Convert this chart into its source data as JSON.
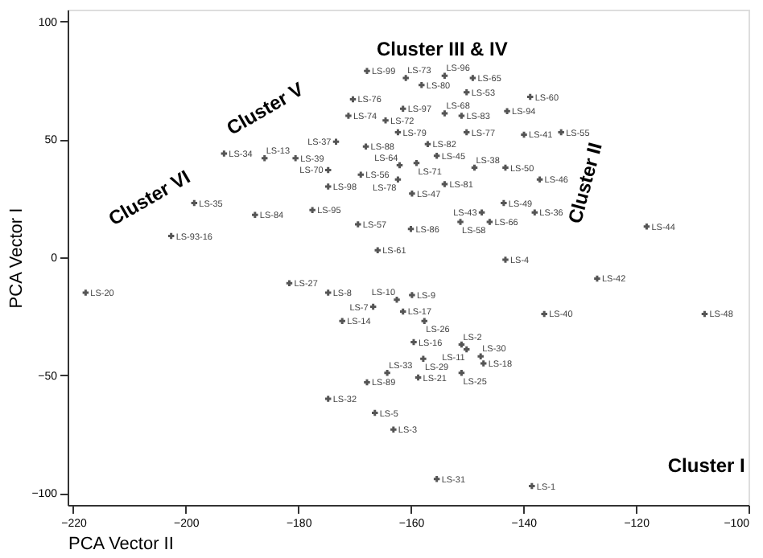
{
  "chart_data": {
    "type": "scatter",
    "xlabel": "PCA Vector II",
    "ylabel": "PCA Vector I",
    "xlim": [
      -221,
      -100
    ],
    "xticks": [
      -220,
      -200,
      -180,
      -160,
      -140,
      -120,
      -100
    ],
    "ylim": [
      -105,
      105
    ],
    "yticks": [
      -100,
      -50,
      0,
      50,
      100
    ],
    "grid": false,
    "marker": "cross",
    "series": [
      {
        "color": "#555555",
        "x": [
          -167.8,
          -170.3,
          -171.1,
          -193.2,
          -186,
          -180.5,
          -173.3,
          -168,
          -174.7,
          -168.9,
          -174.7,
          -187.7,
          -177.5,
          -169.4,
          -165.9,
          -198.5,
          -202.6,
          -217.8,
          -160.9,
          -154,
          -149,
          -158.1,
          -150.1,
          -161.4,
          -164.5,
          -154,
          -151,
          -162.3,
          -150.1,
          -157,
          -155.4,
          -159,
          -162,
          -162.3,
          -159.8,
          -154,
          -148.7,
          -143.2,
          -142.9,
          -138.8,
          -139.9,
          -133.3,
          -137.1,
          -143.5,
          -147.4,
          -138,
          -151.2,
          -146,
          -160,
          -143.2,
          -118.1,
          -126.9,
          -181.6,
          -174.7,
          -166.7,
          -172.2,
          -167.8,
          -164.2,
          -174.7,
          -166.4,
          -163.1,
          -162.5,
          -159.8,
          -161.4,
          -157.6,
          -159.5,
          -151,
          -150.1,
          -157.8,
          -147.6,
          -147.1,
          -151,
          -158.7,
          -155.4,
          -138.5,
          -136.3,
          -107.8
        ],
        "values": [
          79,
          67,
          60,
          44,
          42,
          42,
          49,
          47,
          37,
          35,
          30,
          18,
          20,
          14,
          3,
          23,
          9,
          -15,
          76,
          77,
          76,
          73,
          70,
          63,
          58,
          61,
          60,
          53,
          53,
          48,
          43,
          40,
          39,
          33,
          27,
          31,
          38,
          38,
          62,
          68,
          52,
          53,
          33,
          23,
          19,
          19,
          15,
          15,
          12,
          -1,
          13,
          -9,
          -11,
          -15,
          -21,
          -27,
          -53,
          -49,
          -60,
          -66,
          -73,
          -18,
          -16,
          -23,
          -27,
          -36,
          -37,
          -39,
          -43,
          -42,
          -45,
          -49,
          -51,
          -94,
          -97,
          -24,
          -24
        ],
        "value_labels": [
          "LS-99",
          "LS-76",
          "LS-74",
          "LS-34",
          "LS-13",
          "LS-39",
          "LS-37",
          "LS-88",
          "LS-70",
          "LS-56",
          "LS-98",
          "LS-84",
          "LS-95",
          "LS-57",
          "LS-61",
          "LS-35",
          "LS-93-16",
          "LS-20",
          "LS-73",
          "LS-96",
          "LS-65",
          "LS-80",
          "LS-53",
          "LS-97",
          "LS-72",
          "LS-68",
          "LS-83",
          "LS-79",
          "LS-77",
          "LS-82",
          "LS-45",
          "LS-71",
          "LS-64",
          "LS-78",
          "LS-47",
          "LS-81",
          "LS-38",
          "LS-50",
          "LS-94",
          "LS-60",
          "LS-41",
          "LS-55",
          "LS-46",
          "LS-49",
          "LS-43",
          "LS-36",
          "LS-58",
          "LS-66",
          "LS-86",
          "LS-4",
          "LS-44",
          "LS-42",
          "LS-27",
          "LS-8",
          "LS-7",
          "LS-14",
          "LS-89",
          "LS-33",
          "LS-32",
          "LS-5",
          "LS-3",
          "LS-10",
          "LS-9",
          "LS-17",
          "LS-26",
          "LS-16",
          "LS-2",
          "LS-11",
          "LS-29",
          "LS-30",
          "LS-18",
          "LS-25",
          "LS-21",
          "LS-31",
          "LS-1",
          "LS-40",
          "LS-48"
        ]
      }
    ],
    "annotations": [
      "Cluster III & IV",
      "Cluster V",
      "Cluster VI",
      "Cluster II",
      "Cluster I"
    ]
  }
}
